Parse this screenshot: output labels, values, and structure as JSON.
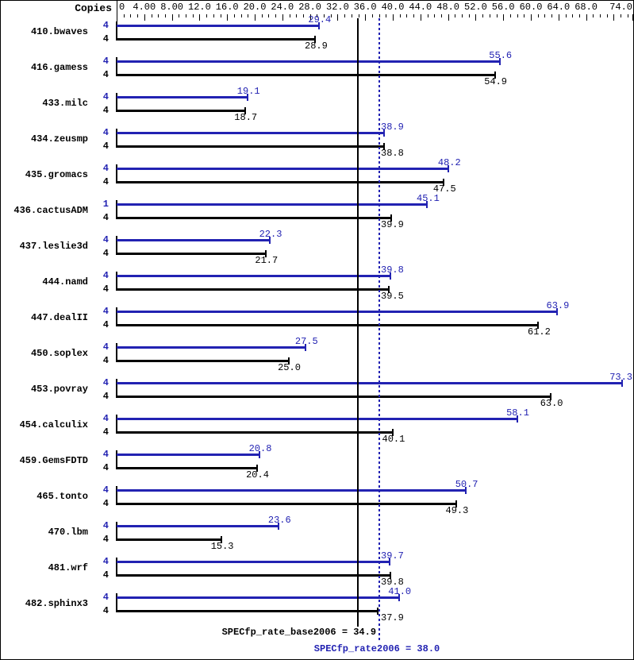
{
  "header": {
    "copies_label": "Copies"
  },
  "chart_data": {
    "type": "bar",
    "orientation": "horizontal",
    "title": "",
    "xlabel": "",
    "ylabel": "",
    "grid": false,
    "axis": {
      "position": "top",
      "min": 0,
      "max": 74.8,
      "minor_step": 1,
      "major_step": 4,
      "tick_labels": [
        {
          "value": 0,
          "label": "0"
        },
        {
          "value": 4,
          "label": "4.00"
        },
        {
          "value": 8,
          "label": "8.00"
        },
        {
          "value": 12,
          "label": "12.0"
        },
        {
          "value": 16,
          "label": "16.0"
        },
        {
          "value": 20,
          "label": "20.0"
        },
        {
          "value": 24,
          "label": "24.0"
        },
        {
          "value": 28,
          "label": "28.0"
        },
        {
          "value": 32,
          "label": "32.0"
        },
        {
          "value": 36,
          "label": "36.0"
        },
        {
          "value": 40,
          "label": "40.0"
        },
        {
          "value": 44,
          "label": "44.0"
        },
        {
          "value": 48,
          "label": "48.0"
        },
        {
          "value": 52,
          "label": "52.0"
        },
        {
          "value": 56,
          "label": "56.0"
        },
        {
          "value": 60,
          "label": "60.0"
        },
        {
          "value": 64,
          "label": "64.0"
        },
        {
          "value": 68,
          "label": "68.0"
        },
        {
          "value": 74,
          "label": "74.0"
        }
      ]
    },
    "series": [
      {
        "name": "peak",
        "color": "#2222b2"
      },
      {
        "name": "base",
        "color": "#000000"
      }
    ],
    "benchmarks": [
      {
        "name": "410.bwaves",
        "peak_copies": "4",
        "base_copies": "4",
        "peak": 29.4,
        "peak_label": "29.4",
        "base": 28.9,
        "base_label": "28.9"
      },
      {
        "name": "416.gamess",
        "peak_copies": "4",
        "base_copies": "4",
        "peak": 55.6,
        "peak_label": "55.6",
        "base": 54.9,
        "base_label": "54.9"
      },
      {
        "name": "433.milc",
        "peak_copies": "4",
        "base_copies": "4",
        "peak": 19.1,
        "peak_label": "19.1",
        "base": 18.7,
        "base_label": "18.7"
      },
      {
        "name": "434.zeusmp",
        "peak_copies": "4",
        "base_copies": "4",
        "peak": 38.9,
        "peak_label": "38.9",
        "base": 38.8,
        "base_label": "38.8"
      },
      {
        "name": "435.gromacs",
        "peak_copies": "4",
        "base_copies": "4",
        "peak": 48.2,
        "peak_label": "48.2",
        "base": 47.5,
        "base_label": "47.5"
      },
      {
        "name": "436.cactusADM",
        "peak_copies": "1",
        "base_copies": "4",
        "peak": 45.1,
        "peak_label": "45.1",
        "base": 39.9,
        "base_label": "39.9"
      },
      {
        "name": "437.leslie3d",
        "peak_copies": "4",
        "base_copies": "4",
        "peak": 22.3,
        "peak_label": "22.3",
        "base": 21.7,
        "base_label": "21.7"
      },
      {
        "name": "444.namd",
        "peak_copies": "4",
        "base_copies": "4",
        "peak": 39.8,
        "peak_label": "39.8",
        "base": 39.5,
        "base_label": "39.5"
      },
      {
        "name": "447.dealII",
        "peak_copies": "4",
        "base_copies": "4",
        "peak": 63.9,
        "peak_label": "63.9",
        "base": 61.2,
        "base_label": "61.2"
      },
      {
        "name": "450.soplex",
        "peak_copies": "4",
        "base_copies": "4",
        "peak": 27.5,
        "peak_label": "27.5",
        "base": 25.0,
        "base_label": "25.0"
      },
      {
        "name": "453.povray",
        "peak_copies": "4",
        "base_copies": "4",
        "peak": 73.3,
        "peak_label": "73.3",
        "base": 63.0,
        "base_label": "63.0"
      },
      {
        "name": "454.calculix",
        "peak_copies": "4",
        "base_copies": "4",
        "peak": 58.1,
        "peak_label": "58.1",
        "base": 40.1,
        "base_label": "40.1"
      },
      {
        "name": "459.GemsFDTD",
        "peak_copies": "4",
        "base_copies": "4",
        "peak": 20.8,
        "peak_label": "20.8",
        "base": 20.4,
        "base_label": "20.4"
      },
      {
        "name": "465.tonto",
        "peak_copies": "4",
        "base_copies": "4",
        "peak": 50.7,
        "peak_label": "50.7",
        "base": 49.3,
        "base_label": "49.3"
      },
      {
        "name": "470.lbm",
        "peak_copies": "4",
        "base_copies": "4",
        "peak": 23.6,
        "peak_label": "23.6",
        "base": 15.3,
        "base_label": "15.3"
      },
      {
        "name": "481.wrf",
        "peak_copies": "4",
        "base_copies": "4",
        "peak": 39.7,
        "peak_label": "39.7",
        "base": 39.8,
        "base_label": "39.8"
      },
      {
        "name": "482.sphinx3",
        "peak_copies": "4",
        "base_copies": "4",
        "peak": 41.0,
        "peak_label": "41.0",
        "base": 37.9,
        "base_label": "37.9"
      }
    ],
    "reference_lines": [
      {
        "name": "base_mean",
        "label": "SPECfp_rate_base2006 = 34.9",
        "value": 34.9,
        "color": "#000000",
        "style": "solid"
      },
      {
        "name": "peak_mean",
        "label": "SPECfp_rate2006 = 38.0",
        "value": 38.0,
        "color": "#2222b2",
        "style": "dotted"
      }
    ]
  }
}
